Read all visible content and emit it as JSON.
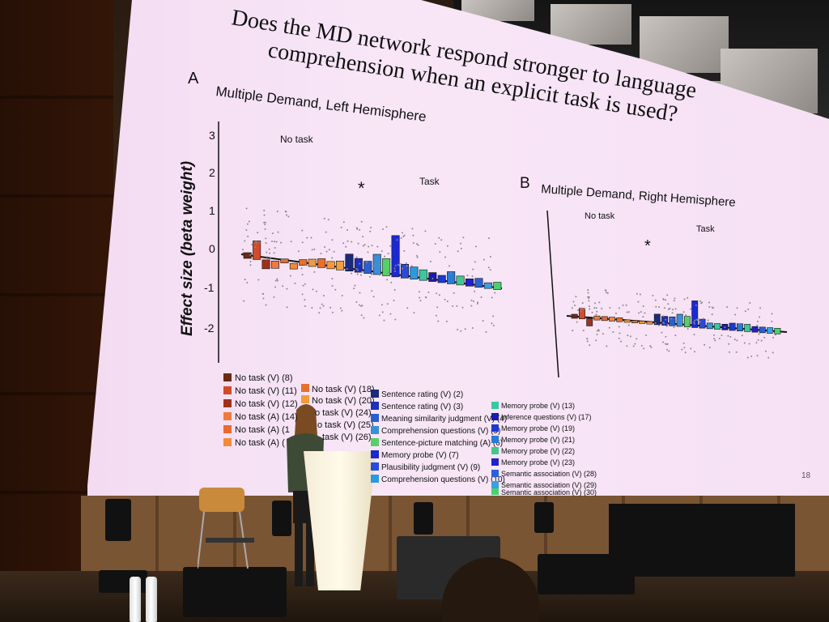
{
  "slide": {
    "title_line1": "Does the MD network respond stronger to language",
    "title_line2": "comprehension when an explicit task is used?",
    "panel_a": {
      "letter": "A",
      "title": "Multiple Demand, Left Hemisphere"
    },
    "panel_b": {
      "letter": "B",
      "title": "Multiple Demand, Right Hemisphere"
    },
    "ylabel": "Effect size (beta weight)",
    "yticks": [
      "3",
      "2",
      "1",
      "0",
      "-1",
      "-2"
    ],
    "no_task_label": "No task",
    "task_label": "Task",
    "significance": "*",
    "page_number": "18"
  },
  "legend": {
    "col1": [
      "No task (V) (8)",
      "No task (V) (11)",
      "No task (V) (12)",
      "No task (A) (14)",
      "No task (A) (1",
      "No task (A) ("
    ],
    "col2": [
      "No task (V) (18)",
      "No task (V) (20)",
      "o task (V) (24)",
      "o task (V) (25)",
      "task (V) (26)"
    ],
    "col3": [
      "Sentence rating (V) (2)",
      "Sentence rating (V) (3)",
      "Meaning similarity judgment (V) (4)",
      "Comprehension questions (V) (5)",
      "Sentence-picture matching (A) (6)",
      "Memory probe (V) (7)",
      "Plausibility judgment (V) (9)",
      "Comprehension questions (V) (10)"
    ],
    "col4": [
      "Memory probe (V) (13)",
      "Inference questions (V) (17)",
      "Memory probe (V) (19)",
      "Memory probe (V) (21)",
      "Memory probe (V) (22)",
      "Memory probe (V) (23)",
      "Semantic association (V) (28)",
      "Semantic association (V) (29)",
      "Semantic association (V) (30)"
    ]
  },
  "colors": {
    "no_task": [
      "#6b2a12",
      "#d44a2a",
      "#a0301c",
      "#ef7a3e",
      "#e86a30",
      "#f28a3a"
    ],
    "no_task2": [
      "#e8702e",
      "#f59a3a"
    ],
    "task_col3": [
      "#1b2a7a",
      "#1f2fb8",
      "#2a5fd0",
      "#3a8fd8",
      "#58d068",
      "#1a2ad0",
      "#2a4ad8",
      "#2a9ae0"
    ],
    "task_col4": [
      "#3ac8a0",
      "#1a1ab0",
      "#1a3ad0",
      "#2a7ad8",
      "#40c890",
      "#2020d0",
      "#2a60d8",
      "#3aa0e0",
      "#4ad070"
    ]
  }
}
